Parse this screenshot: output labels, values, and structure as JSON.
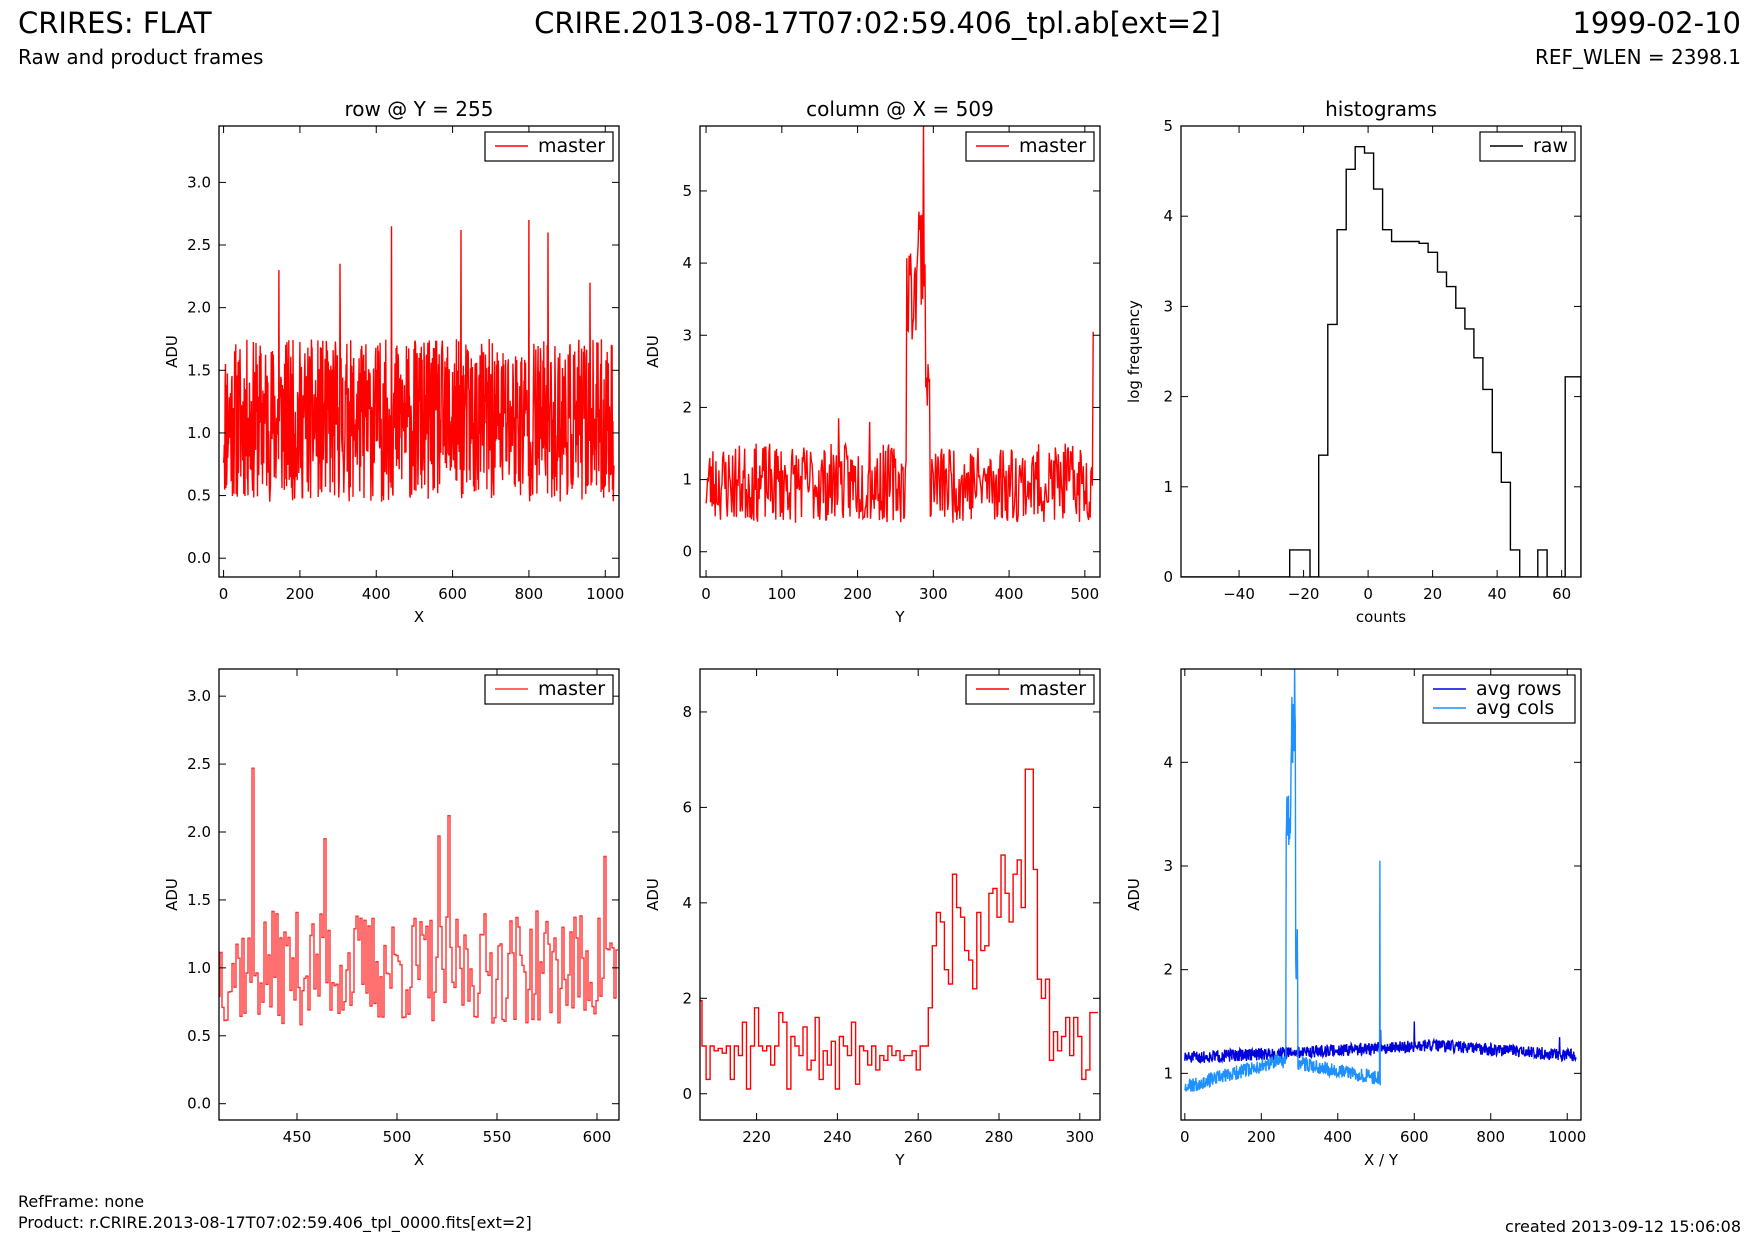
{
  "header": {
    "title": "CRIRES: FLAT",
    "subtitle": "Raw and product frames",
    "center_title": "CRIRE.2013-08-17T07:02:59.406_tpl.ab[ext=2]",
    "date": "1999-02-10",
    "ref_wlen": "REF_WLEN = 2398.1"
  },
  "footer": {
    "ref_frame": "RefFrame: none",
    "product": "Product: r.CRIRE.2013-08-17T07:02:59.406_tpl_0000.fits[ext=2]",
    "created": "created 2013-09-12 15:06:08"
  },
  "colors": {
    "master": "#ff0000",
    "master_zoom": "#ff3333",
    "raw": "#000000",
    "avg_rows": "#0000dd",
    "avg_cols": "#1e90ff"
  },
  "chart_data": [
    {
      "id": "row",
      "type": "line",
      "title": "row @ Y = 255",
      "xlabel": "X",
      "ylabel": "ADU",
      "xlim": [
        -12,
        1036
      ],
      "ylim": [
        -0.15,
        3.45
      ],
      "xticks": [
        0,
        200,
        400,
        600,
        800,
        1000
      ],
      "xticklabels": [
        "0",
        "200",
        "400",
        "600",
        "800",
        "1000"
      ],
      "yticks": [
        0,
        0.5,
        1,
        1.5,
        2,
        2.5,
        3
      ],
      "yticklabels": [
        "0.0",
        "0.5",
        "1.0",
        "1.5",
        "2.0",
        "2.5",
        "3.0"
      ],
      "legend": "top-right",
      "series": [
        {
          "name": "master",
          "color": "#ff0000",
          "style": "line",
          "noise": {
            "n": 1024,
            "x0": 0,
            "dx": 1,
            "base": 1.1,
            "amp": 0.65,
            "min": 0.08,
            "seed": 11,
            "spikes": [
              [
                145,
                2.3
              ],
              [
                305,
                2.35
              ],
              [
                440,
                2.65
              ],
              [
                622,
                2.62
              ],
              [
                800,
                2.7
              ],
              [
                850,
                2.6
              ],
              [
                960,
                2.2
              ]
            ]
          }
        }
      ]
    },
    {
      "id": "column",
      "type": "line",
      "title": "column @ X = 509",
      "xlabel": "Y",
      "ylabel": "ADU",
      "xlim": [
        -8,
        520
      ],
      "ylim": [
        -0.35,
        5.9
      ],
      "xticks": [
        0,
        100,
        200,
        300,
        400,
        500
      ],
      "xticklabels": [
        "0",
        "100",
        "200",
        "300",
        "400",
        "500"
      ],
      "yticks": [
        0,
        1,
        2,
        3,
        4,
        5
      ],
      "yticklabels": [
        "0",
        "1",
        "2",
        "3",
        "4",
        "5"
      ],
      "legend": "top-right",
      "series": [
        {
          "name": "master",
          "color": "#ff0000",
          "style": "line",
          "noise": {
            "n": 512,
            "x0": 0,
            "dx": 1,
            "base": 0.95,
            "amp": 0.55,
            "min": 0.1,
            "seed": 23,
            "segments": [
              [
                265,
                278,
                3.6,
                0.7
              ],
              [
                278,
                290,
                4.2,
                0.8
              ],
              [
                290,
                296,
                2.3,
                0.3
              ]
            ],
            "spikes": [
              [
                287,
                5.9
              ],
              [
                511,
                3.05
              ],
              [
                175,
                1.85
              ],
              [
                216,
                1.8
              ]
            ]
          }
        }
      ]
    },
    {
      "id": "histograms",
      "type": "histogram",
      "title": "histograms",
      "xlabel": "counts",
      "ylabel": "log frequency",
      "xlim": [
        -58,
        66
      ],
      "ylim": [
        0,
        5
      ],
      "xticks": [
        -40,
        -20,
        0,
        20,
        40,
        60
      ],
      "xticklabels": [
        "−40",
        "−20",
        "0",
        "20",
        "40",
        "60"
      ],
      "yticks": [
        0,
        1,
        2,
        3,
        4,
        5
      ],
      "yticklabels": [
        "0",
        "1",
        "2",
        "3",
        "4",
        "5"
      ],
      "legend": "top-right",
      "series": [
        {
          "name": "raw",
          "color": "#000000",
          "style": "step",
          "edges": [
            -58,
            -24.3,
            -18,
            -15.3,
            -12.5,
            -9.6,
            -6.8,
            -4,
            -1.1,
            1.7,
            4.5,
            7.3,
            10.2,
            13,
            15.8,
            18.6,
            21.5,
            24.3,
            27.2,
            30,
            32.8,
            35.6,
            38.5,
            41.3,
            44.1,
            47,
            49.8,
            52.6,
            55.5,
            58.3,
            61.1,
            63.9,
            66
          ],
          "values": [
            0,
            0.3,
            0,
            1.35,
            2.8,
            3.85,
            4.52,
            4.77,
            4.7,
            4.3,
            3.85,
            3.72,
            3.72,
            3.72,
            3.7,
            3.6,
            3.38,
            3.22,
            2.98,
            2.75,
            2.43,
            2.08,
            1.38,
            1.05,
            0.3,
            0,
            0,
            0.3,
            0,
            0,
            2.22,
            2.22
          ]
        }
      ]
    },
    {
      "id": "row-zoom",
      "type": "line",
      "xlabel": "X",
      "ylabel": "ADU",
      "xlim": [
        411,
        611
      ],
      "ylim": [
        -0.12,
        3.2
      ],
      "xticks": [
        450,
        500,
        550,
        600
      ],
      "xticklabels": [
        "450",
        "500",
        "550",
        "600"
      ],
      "yticks": [
        0,
        0.5,
        1,
        1.5,
        2,
        2.5,
        3
      ],
      "yticklabels": [
        "0.0",
        "0.5",
        "1.0",
        "1.5",
        "2.0",
        "2.5",
        "3.0"
      ],
      "legend": "top-right",
      "series": [
        {
          "name": "master",
          "color": "#ff3333",
          "style": "step",
          "noise": {
            "n": 200,
            "x0": 411,
            "dx": 1,
            "base": 1.0,
            "amp": 0.42,
            "min": 0.1,
            "seed": 37,
            "spikes": [
              [
                428,
                2.47
              ],
              [
                526,
                2.12
              ],
              [
                521,
                1.97
              ],
              [
                464,
                1.95
              ],
              [
                604,
                1.82
              ]
            ]
          }
        }
      ]
    },
    {
      "id": "column-zoom",
      "type": "line",
      "xlabel": "Y",
      "ylabel": "ADU",
      "xlim": [
        206,
        305
      ],
      "ylim": [
        -0.55,
        8.9
      ],
      "xticks": [
        220,
        240,
        260,
        280,
        300
      ],
      "xticklabels": [
        "220",
        "240",
        "260",
        "280",
        "300"
      ],
      "yticks": [
        0,
        2,
        4,
        6,
        8
      ],
      "yticklabels": [
        "0",
        "2",
        "4",
        "6",
        "8"
      ],
      "legend": "top-right",
      "series": [
        {
          "name": "master",
          "color": "#ff0000",
          "style": "step",
          "x0": 206,
          "dx": 1,
          "values": [
            1.95,
            1.0,
            0.3,
            1.0,
            0.9,
            0.95,
            0.85,
            1.0,
            0.3,
            1.0,
            0.8,
            1.5,
            0.1,
            1.0,
            1.8,
            1.0,
            0.9,
            1.0,
            0.6,
            1.0,
            1.7,
            1.5,
            0.1,
            1.2,
            1.0,
            0.8,
            1.4,
            0.5,
            0.7,
            1.6,
            0.3,
            0.9,
            0.6,
            1.1,
            0.1,
            1.2,
            1.0,
            0.8,
            1.5,
            0.2,
            1.0,
            0.9,
            0.6,
            1.0,
            0.5,
            0.8,
            0.7,
            1.0,
            0.8,
            0.9,
            0.7,
            0.8,
            0.8,
            0.9,
            0.5,
            1.0,
            1.0,
            1.8,
            3.1,
            3.8,
            3.6,
            2.6,
            2.3,
            4.6,
            3.9,
            3.7,
            3.0,
            2.8,
            2.2,
            3.8,
            3.0,
            3.1,
            4.2,
            4.3,
            3.7,
            5.0,
            4.2,
            3.6,
            4.6,
            4.9,
            3.9,
            6.8,
            6.8,
            4.7,
            2.4,
            2.0,
            2.4,
            0.7,
            1.3,
            0.9,
            1.2,
            1.6,
            0.8,
            1.6,
            1.2,
            0.3,
            0.5,
            1.7,
            1.7
          ]
        }
      ]
    },
    {
      "id": "averages",
      "type": "line",
      "xlabel": "X / Y",
      "ylabel": "ADU",
      "xlim": [
        -10,
        1036
      ],
      "ylim": [
        0.55,
        4.9
      ],
      "xticks": [
        0,
        200,
        400,
        600,
        800,
        1000
      ],
      "xticklabels": [
        "0",
        "200",
        "400",
        "600",
        "800",
        "1000"
      ],
      "yticks": [
        1,
        2,
        3,
        4
      ],
      "yticklabels": [
        "1",
        "2",
        "3",
        "4"
      ],
      "legend": "top-right",
      "series": [
        {
          "name": "avg rows",
          "color": "#0000dd",
          "style": "line",
          "noise": {
            "n": 1024,
            "x0": 0,
            "dx": 1,
            "base": 1.17,
            "amp": 0.06,
            "min": 1.02,
            "seed": 51,
            "trend": [
              [
                0,
                1.15
              ],
              [
                500,
                1.24
              ],
              [
                650,
                1.27
              ],
              [
                1024,
                1.17
              ]
            ],
            "spikes": [
              [
                600,
                1.5
              ],
              [
                512,
                1.42
              ],
              [
                980,
                1.35
              ]
            ]
          }
        },
        {
          "name": "avg cols",
          "color": "#1e90ff",
          "style": "line",
          "noise": {
            "n": 512,
            "x0": 0,
            "dx": 1,
            "base": 0.9,
            "amp": 0.07,
            "min": 0.82,
            "seed": 67,
            "trend": [
              [
                0,
                0.87
              ],
              [
                250,
                1.12
              ],
              [
                270,
                1.12
              ],
              [
                512,
                0.95
              ]
            ],
            "segments": [
              [
                265,
                278,
                3.4,
                0.3
              ],
              [
                278,
                290,
                4.3,
                0.35
              ],
              [
                290,
                296,
                2.2,
                0.3
              ]
            ],
            "spikes": [
              [
                287,
                4.95
              ],
              [
                510,
                3.05
              ]
            ]
          }
        }
      ]
    }
  ]
}
